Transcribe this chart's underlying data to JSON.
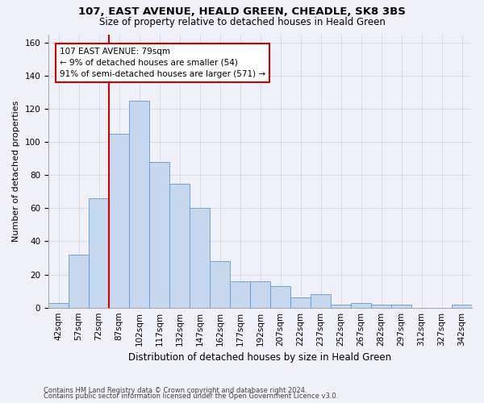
{
  "title1": "107, EAST AVENUE, HEALD GREEN, CHEADLE, SK8 3BS",
  "title2": "Size of property relative to detached houses in Heald Green",
  "xlabel": "Distribution of detached houses by size in Heald Green",
  "ylabel": "Number of detached properties",
  "footnote1": "Contains HM Land Registry data © Crown copyright and database right 2024.",
  "footnote2": "Contains public sector information licensed under the Open Government Licence v3.0.",
  "bin_labels": [
    "42sqm",
    "57sqm",
    "72sqm",
    "87sqm",
    "102sqm",
    "117sqm",
    "132sqm",
    "147sqm",
    "162sqm",
    "177sqm",
    "192sqm",
    "207sqm",
    "222sqm",
    "237sqm",
    "252sqm",
    "267sqm",
    "282sqm",
    "297sqm",
    "312sqm",
    "327sqm",
    "342sqm"
  ],
  "bar_values": [
    3,
    32,
    66,
    105,
    125,
    88,
    75,
    60,
    28,
    16,
    16,
    13,
    6,
    8,
    2,
    3,
    2,
    2,
    0,
    0,
    2
  ],
  "bar_color": "#c5d8ee",
  "bar_edge_color": "#5b9bd5",
  "ylim": [
    0,
    165
  ],
  "yticks": [
    0,
    20,
    40,
    60,
    80,
    100,
    120,
    140,
    160
  ],
  "annotation_line1": "107 EAST AVENUE: 79sqm",
  "annotation_line2": "← 9% of detached houses are smaller (54)",
  "annotation_line3": "91% of semi-detached houses are larger (571) →",
  "annotation_box_color": "#ffffff",
  "annotation_box_edge_color": "#cc0000",
  "red_line_color": "#cc0000",
  "background_color": "#f0f0f8",
  "grid_color": "#d0d0e0",
  "title1_fontsize": 9.5,
  "title2_fontsize": 8.5,
  "xlabel_fontsize": 8.5,
  "ylabel_fontsize": 8.0,
  "tick_fontsize": 7.5,
  "annot_fontsize": 7.5,
  "footnote_fontsize": 6.0
}
